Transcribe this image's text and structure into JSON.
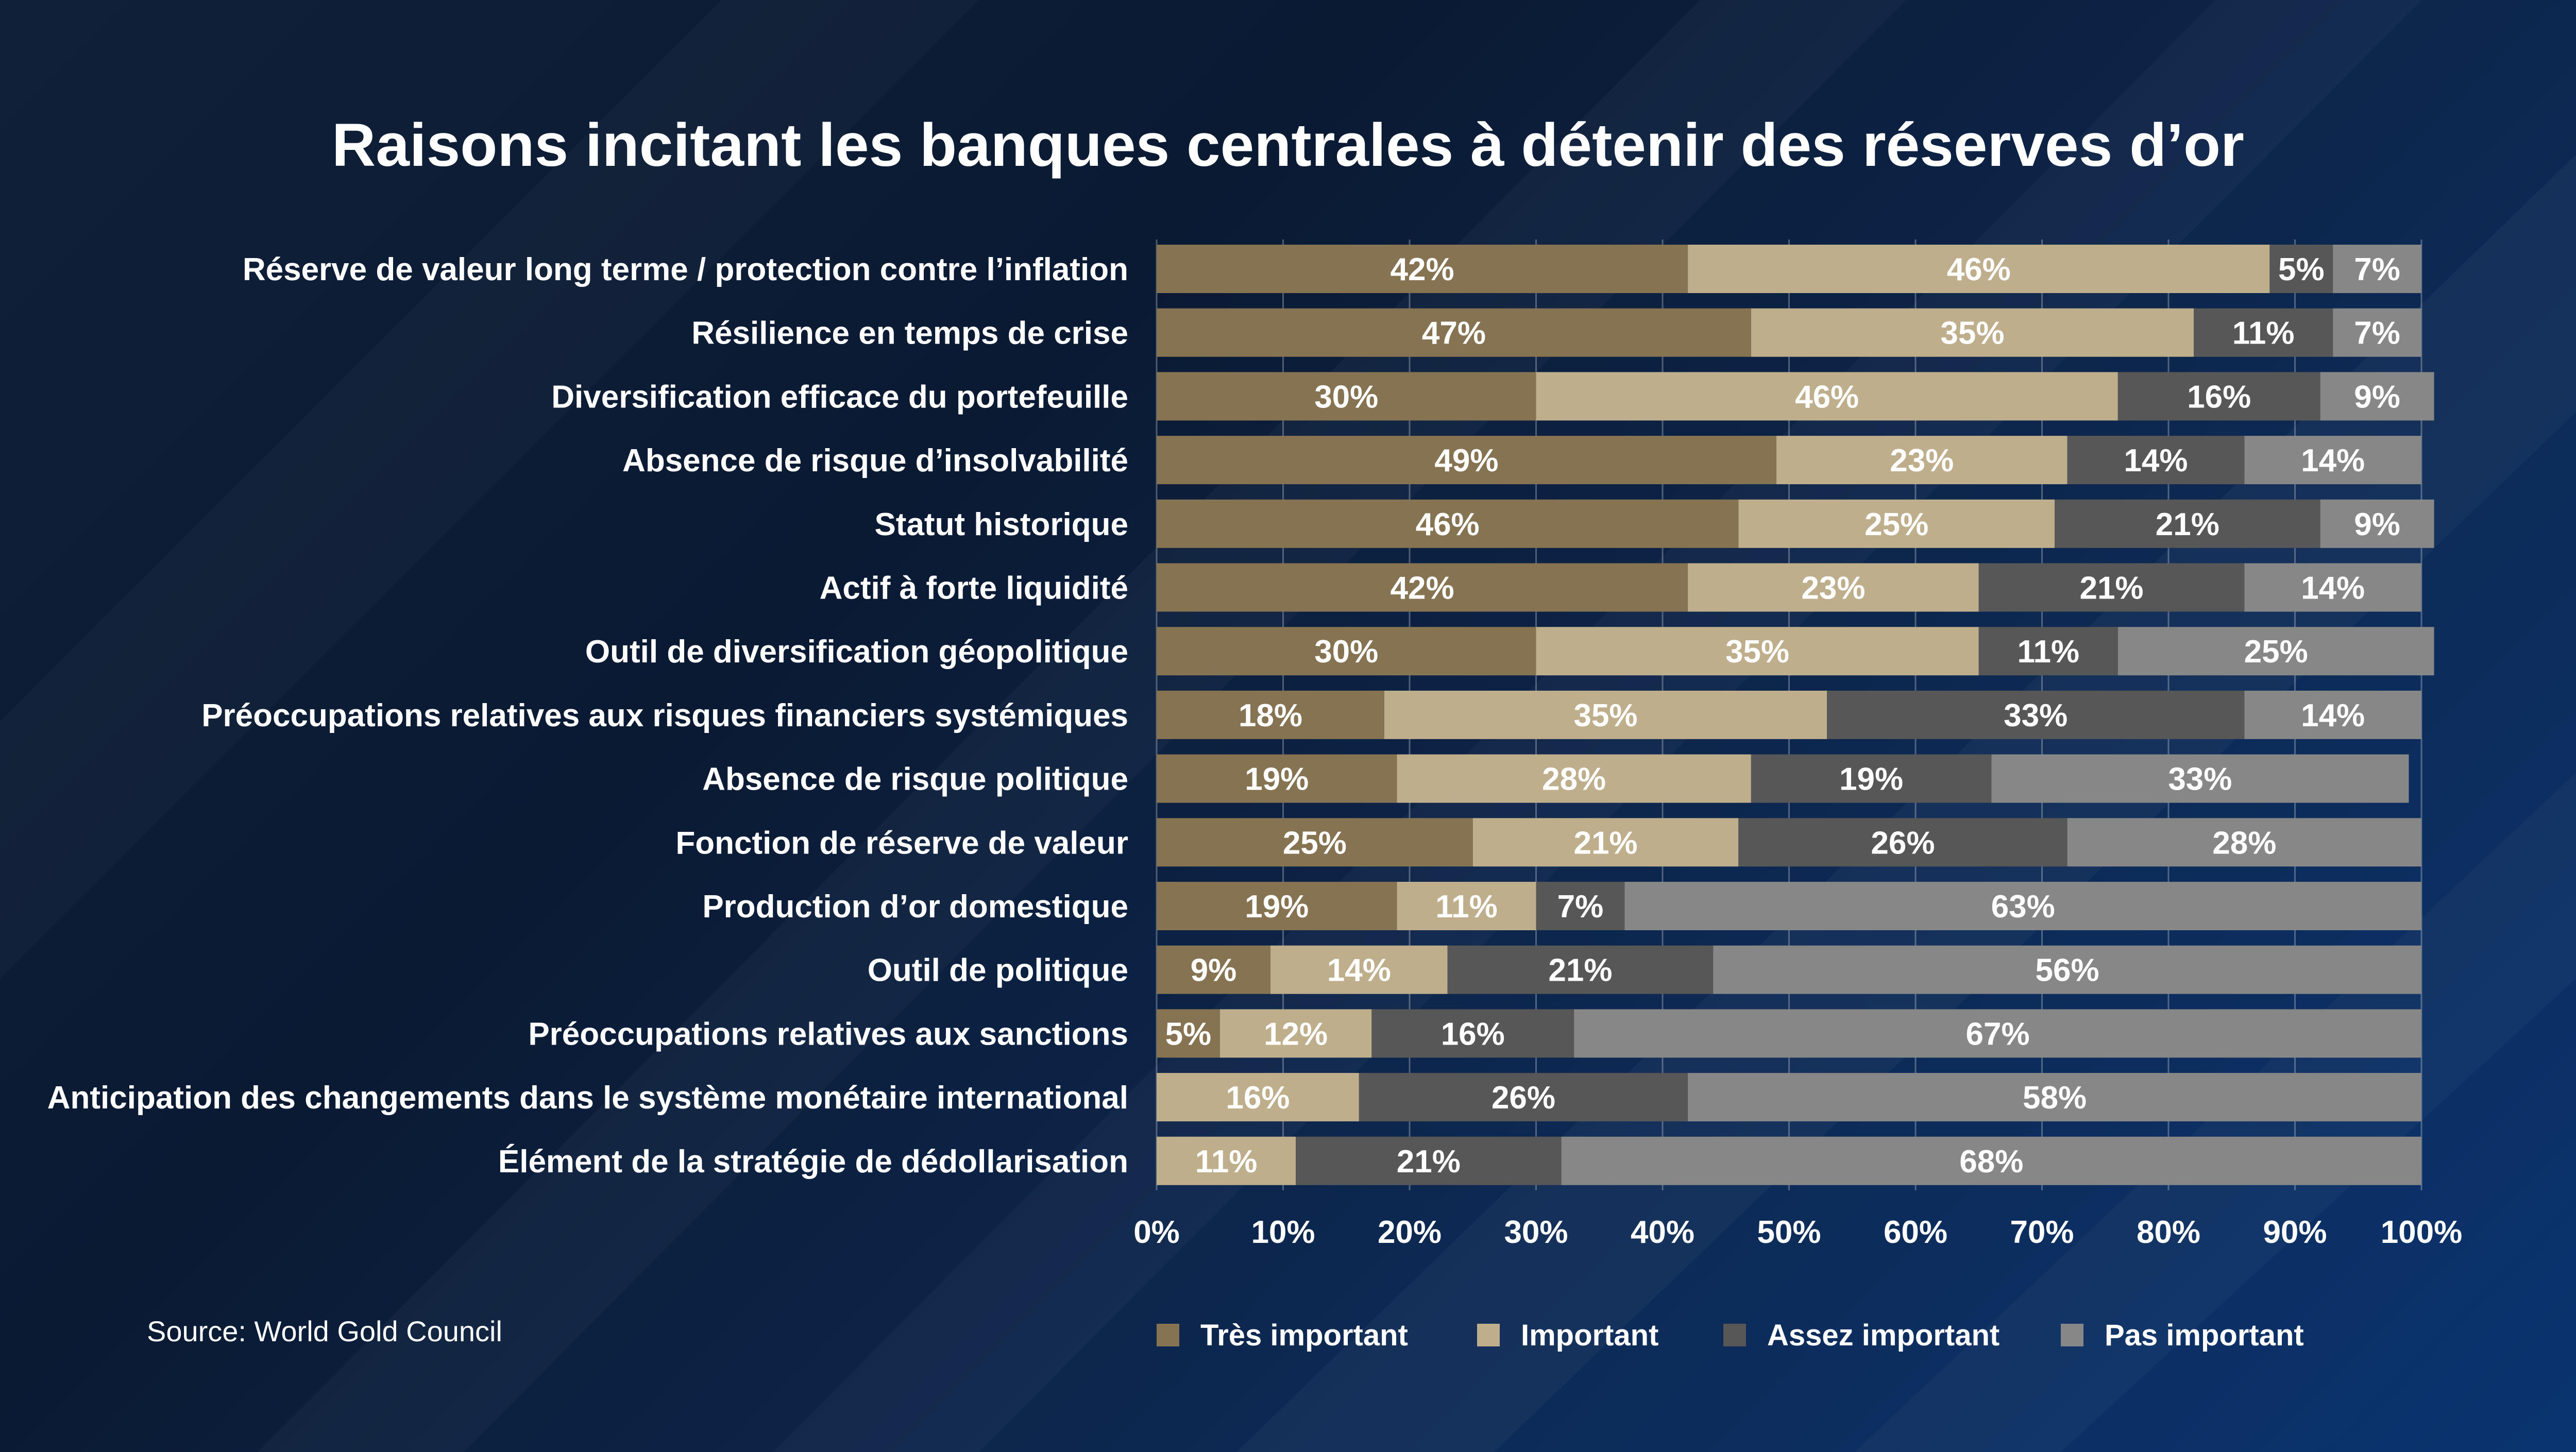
{
  "chart_data": {
    "type": "bar",
    "orientation": "horizontal",
    "stacked": true,
    "title": "Raisons incitant les banques centrales à détenir des réserves d’or",
    "source": "Source: World Gold Council",
    "xlim": [
      0,
      100
    ],
    "x_ticks": [
      "0%",
      "10%",
      "20%",
      "30%",
      "40%",
      "50%",
      "60%",
      "70%",
      "80%",
      "90%",
      "100%"
    ],
    "grid": true,
    "legend_position": "bottom",
    "categories": [
      "Réserve de valeur long terme / protection contre l’inflation",
      "Résilience en temps de crise",
      "Diversification efficace du portefeuille",
      "Absence de risque d’insolvabilité",
      "Statut historique",
      "Actif à forte liquidité",
      "Outil de diversification géopolitique",
      "Préoccupations relatives aux risques financiers systémiques",
      "Absence de risque politique",
      "Fonction de réserve de valeur",
      "Production d’or domestique",
      "Outil de politique",
      "Préoccupations relatives aux sanctions",
      "Anticipation des changements dans le système monétaire international",
      "Élément de la stratégie de dédollarisation"
    ],
    "series": [
      {
        "name": "Très important",
        "color": "#857352",
        "values": [
          42,
          47,
          30,
          49,
          46,
          42,
          30,
          18,
          19,
          25,
          19,
          9,
          5,
          0,
          0
        ]
      },
      {
        "name": "Important",
        "color": "#bfae8c",
        "values": [
          46,
          35,
          46,
          23,
          25,
          23,
          35,
          35,
          28,
          21,
          11,
          14,
          12,
          16,
          11
        ]
      },
      {
        "name": "Assez important",
        "color": "#575757",
        "values": [
          5,
          11,
          16,
          14,
          21,
          21,
          11,
          33,
          19,
          26,
          7,
          21,
          16,
          26,
          21
        ]
      },
      {
        "name": "Pas important",
        "color": "#878787",
        "values": [
          7,
          7,
          9,
          14,
          9,
          14,
          25,
          14,
          33,
          28,
          63,
          56,
          67,
          58,
          68
        ]
      }
    ]
  }
}
